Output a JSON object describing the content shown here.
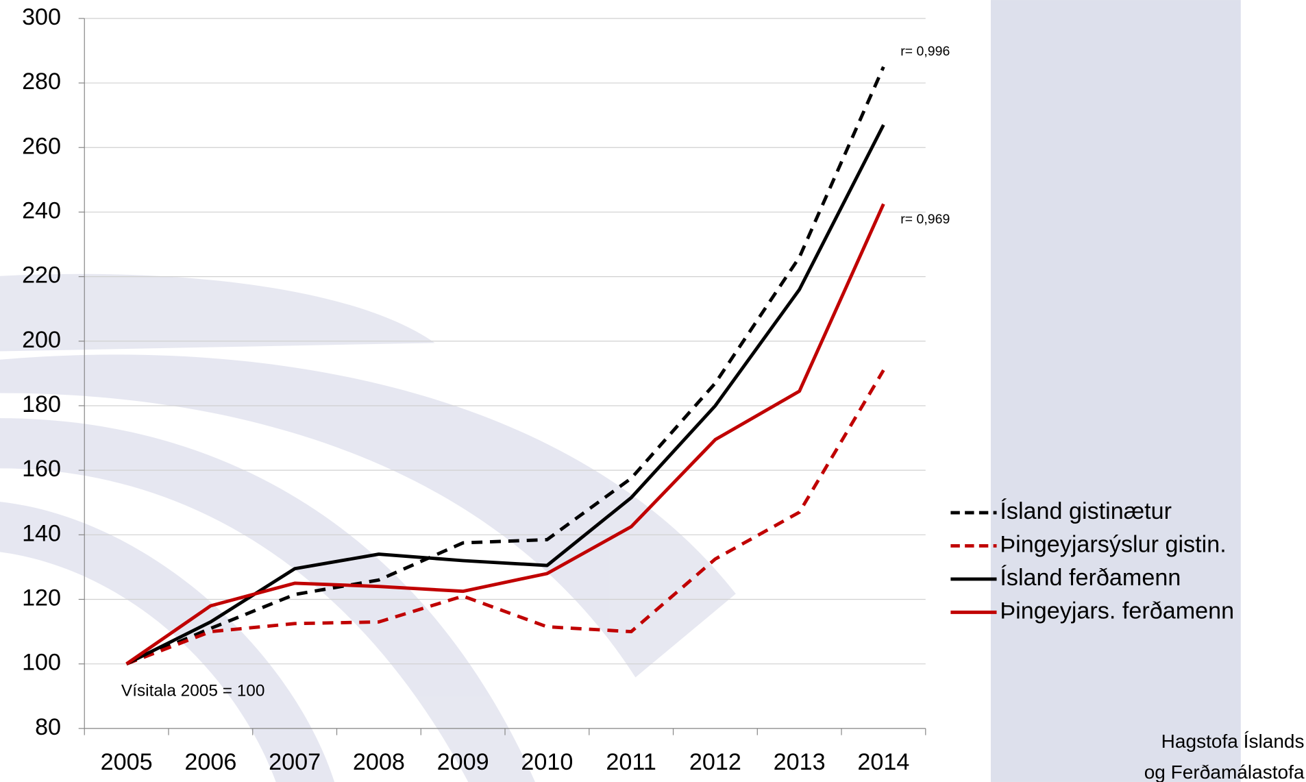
{
  "chart_data": {
    "type": "line",
    "categories": [
      "2005",
      "2006",
      "2007",
      "2008",
      "2009",
      "2010",
      "2011",
      "2012",
      "2013",
      "2014"
    ],
    "series": [
      {
        "name": "Ísland gistinætur",
        "color": "#000000",
        "dashed": true,
        "values": [
          100,
          111,
          121.5,
          126,
          137.5,
          138.5,
          157.5,
          187,
          226,
          285
        ]
      },
      {
        "name": "Þingeyjarsýslur gistin.",
        "color": "#c00000",
        "dashed": true,
        "values": [
          100,
          110,
          112.5,
          113,
          121,
          111.5,
          110,
          132.5,
          147,
          191
        ]
      },
      {
        "name": "Ísland ferðamenn",
        "color": "#000000",
        "dashed": false,
        "values": [
          100,
          113,
          129.5,
          134,
          132,
          130.5,
          151.5,
          180,
          216,
          267
        ]
      },
      {
        "name": "Þingeyjars. ferðamenn",
        "color": "#c00000",
        "dashed": false,
        "values": [
          100,
          118,
          125,
          124,
          122.5,
          128,
          142.5,
          169.5,
          184.5,
          242.5
        ]
      }
    ],
    "ylim": [
      80,
      300
    ],
    "yticks": [
      80,
      100,
      120,
      140,
      160,
      180,
      200,
      220,
      240,
      260,
      280,
      300
    ],
    "grid": true,
    "annotations": [
      "r= 0,996",
      "r= 0,969",
      "Vísitala 2005 = 100"
    ],
    "source": [
      "Hagstofa Íslands",
      "og Ferðamálastofa"
    ]
  }
}
